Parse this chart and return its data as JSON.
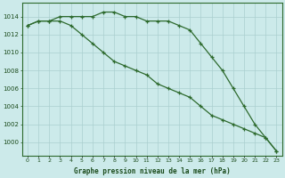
{
  "line1_vals": [
    1013.0,
    1013.5,
    1013.5,
    1014.0,
    1014.0,
    1014.0,
    1014.0,
    1014.5,
    1014.5,
    1014.0,
    1014.0,
    1013.5,
    1013.5,
    1013.5,
    1013.0,
    1012.5,
    1011.0,
    1009.5,
    1008.0,
    1006.0,
    1004.0,
    1002.0,
    1000.5,
    999.0
  ],
  "line2_vals": [
    1013.0,
    1013.5,
    1013.5,
    1013.5,
    1013.0,
    1012.0,
    1011.0,
    1010.0,
    1009.0,
    1008.5,
    1008.0,
    1007.5,
    1006.5,
    1006.0,
    1005.5,
    1005.0,
    1004.0,
    1003.0,
    1002.5,
    1002.0,
    1001.5,
    1001.0,
    1000.5,
    999.0
  ],
  "x": [
    0,
    1,
    2,
    3,
    4,
    5,
    6,
    7,
    8,
    9,
    10,
    11,
    12,
    13,
    14,
    15,
    16,
    17,
    18,
    19,
    20,
    21,
    22,
    23
  ],
  "line_color": "#2d6a2d",
  "bg_color": "#cceaea",
  "grid_color": "#aacfcf",
  "title": "Graphe pression niveau de la mer (hPa)",
  "ylim_min": 998.5,
  "ylim_max": 1015.5,
  "yticks": [
    1000,
    1002,
    1004,
    1006,
    1008,
    1010,
    1012,
    1014
  ],
  "label_color": "#1a4a1a",
  "marker": "+"
}
